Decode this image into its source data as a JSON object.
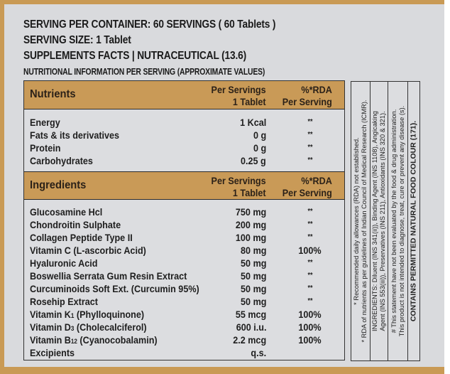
{
  "header": {
    "serving_per_container": "SERVING PER CONTAINER:  60 SERVINGS ( 60 Tablets )",
    "serving_size": "SERVING SIZE: 1 Tablet",
    "supplements_facts": "SUPPLEMENTS FACTS | NUTRACEUTICAL (13.6)",
    "nutritional_info": "NUTRITIONAL INFORMATION PER SERVING (APPROXIMATE VALUES)"
  },
  "nutrients_section": {
    "title": "Nutrients",
    "col_per_serving_line1": "Per Servings",
    "col_per_serving_line2": "1 Tablet",
    "col_rda_line1": "%*RDA",
    "col_rda_line2": "Per Serving",
    "rows": [
      {
        "name": "Energy",
        "value": "1 Kcal",
        "rda": "**"
      },
      {
        "name": "Fats & its derivatives",
        "value": "0 g",
        "rda": "**"
      },
      {
        "name": "Protein",
        "value": "0 g",
        "rda": "**"
      },
      {
        "name": "Carbohydrates",
        "value": "0.25 g",
        "rda": "**"
      }
    ]
  },
  "ingredients_section": {
    "title": "Ingredients",
    "col_per_serving_line1": "Per Servings",
    "col_per_serving_line2": "1 Tablet",
    "col_rda_line1": "%*RDA",
    "col_rda_line2": "Per Serving",
    "rows": [
      {
        "name": "Glucosamine Hcl",
        "value": "750 mg",
        "rda": "**"
      },
      {
        "name": "Chondroitin Sulphate",
        "value": "200 mg",
        "rda": "**"
      },
      {
        "name": "Collagen Peptide Type II",
        "value": "100 mg",
        "rda": "**"
      },
      {
        "name": "Vitamin C (L-ascorbic Acid)",
        "value": "80 mg",
        "rda": "100%"
      },
      {
        "name": "Hyaluronic Acid",
        "value": "50 mg",
        "rda": "**"
      },
      {
        "name": "Boswellia Serrata Gum Resin Extract",
        "value": "50 mg",
        "rda": "**"
      },
      {
        "name": "Curcuminoids Soft Ext. (Curcumin 95%)",
        "value": "50 mg",
        "rda": "**"
      },
      {
        "name": "Rosehip Extract",
        "value": "50 mg",
        "rda": "**"
      },
      {
        "name_prefix": "Vitamin K",
        "name_sub": "1",
        "name_suffix": " (Phylloquinone)",
        "value": "55 mcg",
        "rda": "100%"
      },
      {
        "name_prefix": "Vitamin D",
        "name_sub": "3",
        "name_suffix": " (Cholecalciferol)",
        "value": "600 i.u.",
        "rda": "100%"
      },
      {
        "name_prefix": "Vitamin B",
        "name_sub": "12",
        "name_suffix": " (Cyanocobalamin)",
        "value": "2.2 mcg",
        "rda": "100%"
      },
      {
        "name": "Excipients",
        "value": "q.s.",
        "rda": ""
      }
    ]
  },
  "notes": {
    "rda_note_line1": "* Recommended daily allowances (RDA) not established.",
    "rda_note_line2": "* RDA of nutrients as per guidelines of Indian Council of Medical Research (ICMR).",
    "ingredients_line1": "INGREDIENTS: Diluent (INS 341(ii)), Binding Agent (INS 1108), Angicaking",
    "ingredients_line2": "Agent (INS 553(iii)), Preservatives (INS 211), Antioxidants (INS 320 & 321).",
    "disclaimer_line1": "# This statement have not been evaluated by the food & drug administration.",
    "disclaimer_line2": "This product is not intended to diagnose, treat, cure or prevent any disease (s).",
    "colour_note": "CONTAINS PERMITTED NATURAL FOOD COLOUR (171)."
  },
  "colors": {
    "frame_gold": "#c99a55",
    "header_band_gold": "#c99a57",
    "panel_gray": "#d9dadd",
    "text_dark": "#1a1a1a"
  }
}
